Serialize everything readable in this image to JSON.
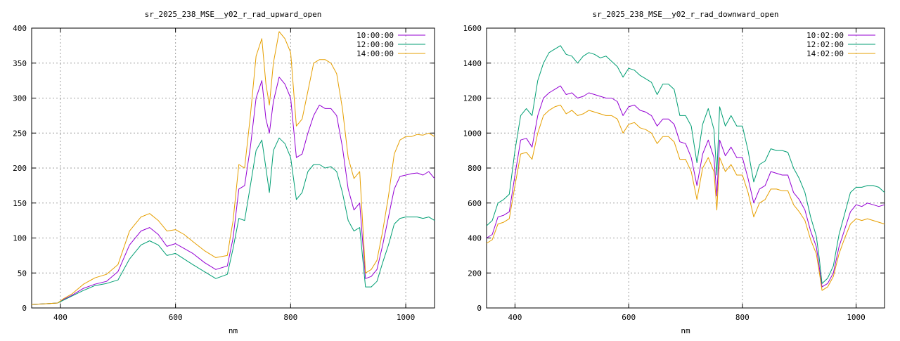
{
  "chart_data": [
    {
      "type": "line",
      "title": "sr_2025_238_MSE__y02_r_rad_upward_open",
      "xlabel": "nm",
      "ylabel": "",
      "xlim": [
        350,
        1050
      ],
      "ylim": [
        0,
        400
      ],
      "xticks": [
        400,
        600,
        800,
        1000
      ],
      "yticks": [
        0,
        50,
        100,
        150,
        200,
        250,
        300,
        350,
        400
      ],
      "grid": true,
      "legend_position": "top-right",
      "x": [
        350,
        375,
        395,
        405,
        420,
        440,
        460,
        480,
        500,
        520,
        540,
        555,
        570,
        585,
        600,
        615,
        630,
        650,
        670,
        690,
        700,
        710,
        720,
        730,
        740,
        750,
        757,
        763,
        770,
        780,
        790,
        800,
        810,
        820,
        830,
        840,
        850,
        860,
        870,
        880,
        890,
        900,
        910,
        920,
        930,
        940,
        950,
        960,
        970,
        980,
        990,
        1000,
        1010,
        1020,
        1030,
        1040,
        1050
      ],
      "series": [
        {
          "name": "10:00:00",
          "color": "#9400d3",
          "values": [
            5,
            6,
            7,
            12,
            18,
            28,
            34,
            38,
            52,
            90,
            110,
            115,
            105,
            88,
            92,
            85,
            78,
            65,
            55,
            60,
            100,
            170,
            175,
            230,
            300,
            325,
            270,
            250,
            295,
            330,
            320,
            300,
            215,
            220,
            250,
            275,
            290,
            285,
            285,
            275,
            230,
            170,
            140,
            150,
            42,
            45,
            55,
            90,
            130,
            170,
            188,
            190,
            192,
            193,
            190,
            195,
            185
          ]
        },
        {
          "name": "12:00:00",
          "color": "#009e73",
          "values": [
            5,
            6,
            7,
            11,
            17,
            25,
            32,
            35,
            40,
            70,
            90,
            96,
            90,
            75,
            78,
            70,
            62,
            52,
            42,
            48,
            85,
            128,
            125,
            175,
            225,
            240,
            200,
            165,
            225,
            243,
            235,
            215,
            155,
            165,
            195,
            205,
            205,
            200,
            202,
            195,
            165,
            125,
            110,
            115,
            30,
            30,
            38,
            65,
            90,
            120,
            128,
            130,
            130,
            130,
            128,
            130,
            125
          ]
        },
        {
          "name": "14:00:00",
          "color": "#e69f00",
          "values": [
            5,
            6,
            7,
            13,
            20,
            34,
            43,
            48,
            62,
            110,
            130,
            135,
            125,
            110,
            112,
            105,
            95,
            82,
            72,
            75,
            125,
            205,
            200,
            275,
            360,
            385,
            320,
            290,
            350,
            395,
            385,
            365,
            260,
            270,
            310,
            350,
            355,
            355,
            350,
            335,
            285,
            215,
            185,
            195,
            50,
            55,
            68,
            110,
            160,
            220,
            240,
            245,
            245,
            248,
            247,
            250,
            245
          ]
        }
      ]
    },
    {
      "type": "line",
      "title": "sr_2025_238_MSE__y02_r_rad_downward_open",
      "xlabel": "nm",
      "ylabel": "",
      "xlim": [
        350,
        1050
      ],
      "ylim": [
        0,
        1600
      ],
      "xticks": [
        400,
        600,
        800,
        1000
      ],
      "yticks": [
        0,
        200,
        400,
        600,
        800,
        1000,
        1200,
        1400,
        1600
      ],
      "grid": true,
      "legend_position": "top-right",
      "x": [
        350,
        360,
        370,
        380,
        390,
        400,
        410,
        420,
        430,
        440,
        450,
        460,
        470,
        480,
        490,
        500,
        510,
        520,
        530,
        540,
        550,
        560,
        570,
        580,
        590,
        600,
        610,
        620,
        630,
        640,
        650,
        660,
        670,
        680,
        690,
        700,
        710,
        720,
        730,
        740,
        750,
        755,
        760,
        770,
        780,
        790,
        800,
        810,
        820,
        830,
        840,
        850,
        860,
        870,
        880,
        890,
        900,
        910,
        920,
        930,
        935,
        940,
        950,
        960,
        970,
        980,
        990,
        1000,
        1010,
        1020,
        1030,
        1040,
        1050
      ],
      "series": [
        {
          "name": "10:02:00",
          "color": "#9400d3",
          "values": [
            400,
            420,
            520,
            530,
            550,
            760,
            960,
            970,
            920,
            1100,
            1200,
            1230,
            1250,
            1270,
            1220,
            1230,
            1200,
            1210,
            1230,
            1220,
            1210,
            1200,
            1200,
            1180,
            1100,
            1150,
            1160,
            1130,
            1120,
            1100,
            1040,
            1080,
            1080,
            1050,
            950,
            940,
            860,
            700,
            880,
            960,
            860,
            640,
            960,
            870,
            920,
            860,
            860,
            740,
            600,
            680,
            700,
            780,
            770,
            760,
            760,
            660,
            620,
            560,
            440,
            350,
            240,
            120,
            140,
            200,
            350,
            450,
            550,
            590,
            580,
            600,
            590,
            580,
            590
          ]
        },
        {
          "name": "12:02:00",
          "color": "#009e73",
          "values": [
            470,
            500,
            600,
            620,
            650,
            900,
            1100,
            1140,
            1100,
            1300,
            1400,
            1460,
            1480,
            1500,
            1450,
            1440,
            1400,
            1440,
            1460,
            1450,
            1430,
            1440,
            1410,
            1380,
            1320,
            1370,
            1360,
            1330,
            1310,
            1290,
            1220,
            1280,
            1280,
            1250,
            1100,
            1100,
            1040,
            830,
            1050,
            1140,
            1020,
            760,
            1150,
            1040,
            1100,
            1040,
            1040,
            900,
            720,
            820,
            840,
            910,
            900,
            900,
            890,
            800,
            740,
            660,
            520,
            410,
            290,
            140,
            170,
            240,
            420,
            540,
            660,
            690,
            690,
            700,
            700,
            690,
            660
          ]
        },
        {
          "name": "14:02:00",
          "color": "#e69f00",
          "values": [
            370,
            390,
            480,
            490,
            510,
            700,
            880,
            890,
            850,
            1000,
            1100,
            1130,
            1150,
            1160,
            1110,
            1130,
            1100,
            1110,
            1130,
            1120,
            1110,
            1100,
            1100,
            1080,
            1000,
            1050,
            1060,
            1030,
            1020,
            1000,
            940,
            980,
            980,
            950,
            850,
            850,
            780,
            620,
            800,
            860,
            780,
            560,
            860,
            780,
            820,
            760,
            760,
            660,
            520,
            600,
            620,
            680,
            680,
            670,
            670,
            590,
            550,
            500,
            390,
            310,
            210,
            100,
            120,
            180,
            310,
            400,
            480,
            510,
            500,
            510,
            500,
            490,
            480
          ]
        }
      ]
    }
  ]
}
